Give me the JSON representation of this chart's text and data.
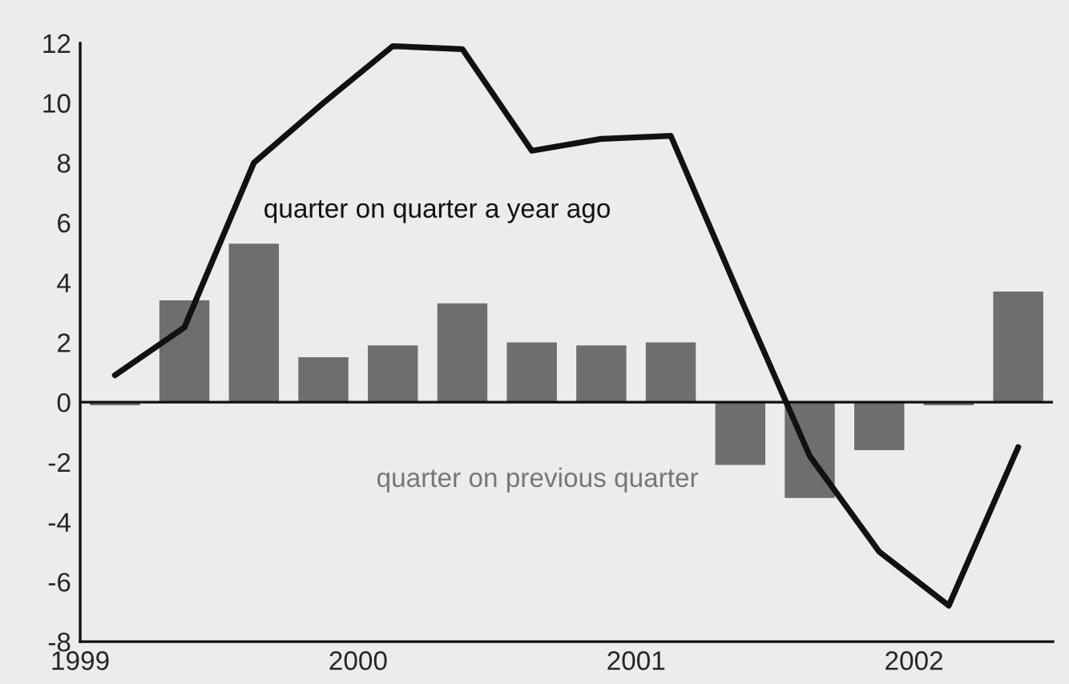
{
  "chart_data": {
    "type": "bar",
    "x": [
      1999.125,
      1999.375,
      1999.625,
      1999.875,
      2000.125,
      2000.375,
      2000.625,
      2000.875,
      2001.125,
      2001.375,
      2001.625,
      2001.875,
      2002.125,
      2002.375
    ],
    "series": [
      {
        "name": "quarter on previous quarter",
        "color": "#6e6e6e",
        "values": [
          -0.1,
          3.4,
          5.3,
          1.5,
          1.9,
          3.3,
          2.0,
          1.9,
          2.0,
          -2.1,
          -3.2,
          -1.6,
          -0.1,
          3.7
        ]
      },
      {
        "name": "quarter on quarter a year ago",
        "type": "line",
        "color": "#111111",
        "values": [
          0.9,
          2.5,
          8.0,
          10.0,
          11.9,
          11.8,
          8.4,
          8.8,
          8.9,
          3.5,
          -1.8,
          -5.0,
          -6.8,
          -1.5
        ]
      }
    ],
    "xlim": [
      1999,
      2002.5
    ],
    "xticks": [
      1999,
      2000,
      2001,
      2002
    ],
    "ylim": [
      -8,
      12
    ],
    "yticks": [
      -8,
      -6,
      -4,
      -2,
      0,
      2,
      4,
      6,
      8,
      10,
      12
    ],
    "ref_lines": [
      {
        "axis": "y",
        "value": 0,
        "color": "#111111"
      }
    ],
    "grid": false,
    "legend": false,
    "line_style": "solid",
    "marker": "none"
  }
}
